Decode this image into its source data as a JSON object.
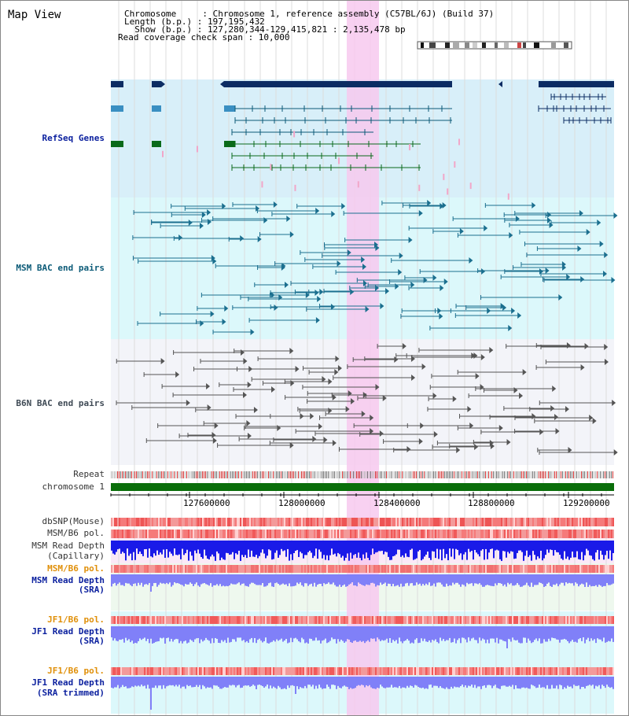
{
  "header": {
    "title": "Map View",
    "info_lines": [
      "Chromosome     : Chromosome 1, reference assembly (C57BL/6J) (Build 37)",
      "Length (b.p.) : 197,195,432",
      "  Show (b.p.) : 127,280,344-129,415,821 : 2,135,478 bp",
      "Read coverage check span : 10,000"
    ]
  },
  "tracks": {
    "refseq": "RefSeq Genes",
    "msm_bac": "MSM BAC end pairs",
    "b6n_bac": "B6N BAC end pairs",
    "repeat": "Repeat",
    "chromosome": "chromosome 1",
    "dbsnp": "dbSNP(Mouse)",
    "msm_b6_pol_1": "MSM/B6 pol.",
    "msm_depth_cap_1": "MSM Read Depth",
    "msm_depth_cap_2": "(Capillary)",
    "msm_b6_pol_2": "MSM/B6 pol.",
    "msm_depth_sra_1": "MSM Read Depth",
    "msm_depth_sra_2": "(SRA)",
    "jf1_b6_pol_1": "JF1/B6 pol.",
    "jf1_depth_sra_1": "JF1 Read Depth",
    "jf1_depth_sra_2": "(SRA)",
    "jf1_b6_pol_2": "JF1/B6 pol.",
    "jf1_depth_trim_1": "JF1 Read Depth",
    "jf1_depth_trim_2": "(SRA trimmed)"
  },
  "axis": {
    "ticks": [
      "127600000",
      "128000000",
      "128400000",
      "128800000",
      "129200000"
    ]
  },
  "colors": {
    "refseq_bg": "#d8eff9",
    "msm_bg": "#dcf8fb",
    "b6n_bg": "#f3f4f9",
    "highlight": "#f7c9ee",
    "depth_bar": "#8080f8",
    "depth_cap_bar": "#1a1ae8",
    "pol_bar": "#f05a5a",
    "chromosome_bar": "#0a6e0a"
  }
}
